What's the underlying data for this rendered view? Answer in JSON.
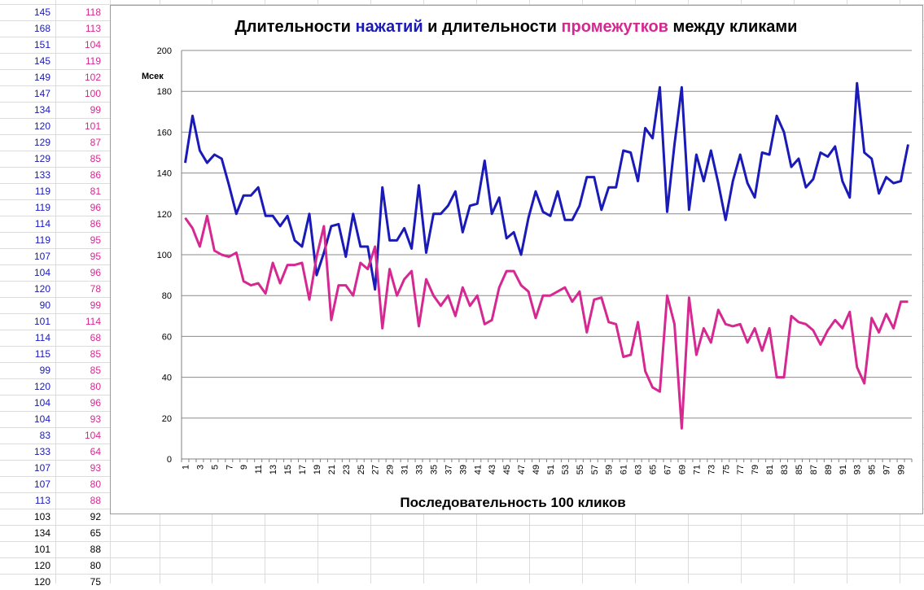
{
  "spreadsheet": {
    "col_a_color": "#1a1ab8",
    "col_b_color": "#d62891",
    "tail_color": "#000000",
    "rows": [
      [
        "145",
        "118"
      ],
      [
        "168",
        "113"
      ],
      [
        "151",
        "104"
      ],
      [
        "145",
        "119"
      ],
      [
        "149",
        "102"
      ],
      [
        "147",
        "100"
      ],
      [
        "134",
        "99"
      ],
      [
        "120",
        "101"
      ],
      [
        "129",
        "87"
      ],
      [
        "129",
        "85"
      ],
      [
        "133",
        "86"
      ],
      [
        "119",
        "81"
      ],
      [
        "119",
        "96"
      ],
      [
        "114",
        "86"
      ],
      [
        "119",
        "95"
      ],
      [
        "107",
        "95"
      ],
      [
        "104",
        "96"
      ],
      [
        "120",
        "78"
      ],
      [
        "90",
        "99"
      ],
      [
        "101",
        "114"
      ],
      [
        "114",
        "68"
      ],
      [
        "115",
        "85"
      ],
      [
        "99",
        "85"
      ],
      [
        "120",
        "80"
      ],
      [
        "104",
        "96"
      ],
      [
        "104",
        "93"
      ],
      [
        "83",
        "104"
      ],
      [
        "133",
        "64"
      ],
      [
        "107",
        "93"
      ],
      [
        "107",
        "80"
      ],
      [
        "113",
        "88"
      ],
      [
        "103",
        "92"
      ],
      [
        "134",
        "65"
      ],
      [
        "101",
        "88"
      ],
      [
        "120",
        "80"
      ],
      [
        "120",
        "75"
      ]
    ]
  },
  "chart_data": {
    "type": "line",
    "title_parts": [
      {
        "text": "Длительности ",
        "color": "#000000"
      },
      {
        "text": "нажатий",
        "color": "#1a1ab8"
      },
      {
        "text": " и длительности ",
        "color": "#000000"
      },
      {
        "text": "промежутков",
        "color": "#d62891"
      },
      {
        "text": " между кликами",
        "color": "#000000"
      }
    ],
    "xlabel": "Последовательность  100 кликов",
    "ylabel": "Мсек",
    "ylim": [
      0,
      200
    ],
    "y_ticks": [
      0,
      20,
      40,
      60,
      80,
      100,
      120,
      140,
      160,
      180,
      200
    ],
    "x_ticks": [
      1,
      3,
      5,
      7,
      9,
      11,
      13,
      15,
      17,
      19,
      21,
      23,
      25,
      27,
      29,
      31,
      33,
      35,
      37,
      39,
      41,
      43,
      45,
      47,
      49,
      51,
      53,
      55,
      57,
      59,
      61,
      63,
      65,
      67,
      69,
      71,
      73,
      75,
      77,
      79,
      81,
      83,
      85,
      87,
      89,
      91,
      93,
      95,
      97,
      99
    ],
    "grid": true,
    "series": [
      {
        "color": "#1a1ab8",
        "values": [
          145,
          168,
          151,
          145,
          149,
          147,
          134,
          120,
          129,
          129,
          133,
          119,
          119,
          114,
          119,
          107,
          104,
          120,
          90,
          101,
          114,
          115,
          99,
          120,
          104,
          104,
          83,
          133,
          107,
          107,
          113,
          103,
          134,
          101,
          120,
          120,
          124,
          131,
          111,
          124,
          125,
          146,
          120,
          128,
          108,
          111,
          100,
          118,
          131,
          121,
          119,
          131,
          117,
          117,
          124,
          138,
          138,
          122,
          133,
          133,
          151,
          150,
          136,
          162,
          157,
          182,
          121,
          154,
          182,
          122,
          149,
          136,
          151,
          135,
          117,
          136,
          149,
          135,
          128,
          150,
          149,
          168,
          160,
          143,
          147,
          133,
          137,
          150,
          148,
          153,
          136,
          128,
          184,
          150,
          147,
          130,
          138,
          135,
          136,
          154
        ]
      },
      {
        "color": "#d62891",
        "values": [
          118,
          113,
          104,
          119,
          102,
          100,
          99,
          101,
          87,
          85,
          86,
          81,
          96,
          86,
          95,
          95,
          96,
          78,
          99,
          114,
          68,
          85,
          85,
          80,
          96,
          93,
          104,
          64,
          93,
          80,
          88,
          92,
          65,
          88,
          80,
          75,
          80,
          70,
          84,
          75,
          80,
          66,
          68,
          84,
          92,
          92,
          85,
          82,
          69,
          80,
          80,
          82,
          84,
          77,
          82,
          62,
          78,
          79,
          67,
          66,
          50,
          51,
          67,
          43,
          35,
          33,
          80,
          66,
          15,
          79,
          51,
          64,
          57,
          73,
          66,
          65,
          66,
          57,
          64,
          53,
          64,
          40,
          40,
          70,
          67,
          66,
          63,
          56,
          63,
          68,
          64,
          72,
          45,
          37,
          69,
          62,
          71,
          64,
          77,
          77
        ]
      }
    ]
  }
}
